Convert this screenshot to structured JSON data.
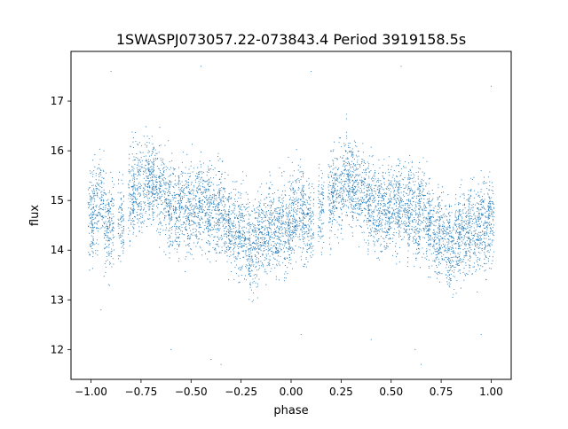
{
  "chart_data": {
    "type": "scatter",
    "title": "1SWASPJ073057.22-073843.4 Period 3919158.5s",
    "xlabel": "phase",
    "ylabel": "flux",
    "xlim": [
      -1.1,
      1.1
    ],
    "ylim": [
      11.4,
      18.0
    ],
    "xticks": [
      -1.0,
      -0.75,
      -0.5,
      -0.25,
      0.0,
      0.25,
      0.5,
      0.75,
      1.0
    ],
    "xtick_labels": [
      "−1.00",
      "−0.75",
      "−0.50",
      "−0.25",
      "0.00",
      "0.25",
      "0.50",
      "0.75",
      "1.00"
    ],
    "yticks": [
      12,
      13,
      14,
      15,
      16,
      17
    ],
    "ytick_labels": [
      "12",
      "13",
      "14",
      "15",
      "16",
      "17"
    ],
    "grid": false,
    "legend": "none",
    "marker_color": "#1f77b4",
    "series": [
      {
        "values_description_free": true,
        "points": [
          [
            -1.0,
            14.6
          ],
          [
            -0.98,
            14.9
          ],
          [
            -0.95,
            15.1
          ],
          [
            -0.92,
            14.4
          ],
          [
            -0.9,
            14.6
          ],
          [
            -0.85,
            14.5
          ],
          [
            -0.8,
            15.0
          ],
          [
            -0.78,
            15.3
          ],
          [
            -0.75,
            15.2
          ],
          [
            -0.72,
            15.5
          ],
          [
            -0.7,
            15.4
          ],
          [
            -0.68,
            15.3
          ],
          [
            -0.65,
            15.2
          ],
          [
            -0.62,
            15.0
          ],
          [
            -0.6,
            14.9
          ],
          [
            -0.57,
            14.8
          ],
          [
            -0.55,
            14.9
          ],
          [
            -0.52,
            14.7
          ],
          [
            -0.5,
            14.9
          ],
          [
            -0.47,
            14.8
          ],
          [
            -0.45,
            15.0
          ],
          [
            -0.42,
            14.8
          ],
          [
            -0.4,
            14.9
          ],
          [
            -0.37,
            14.7
          ],
          [
            -0.35,
            14.9
          ],
          [
            -0.32,
            14.6
          ],
          [
            -0.3,
            14.4
          ],
          [
            -0.27,
            14.3
          ],
          [
            -0.25,
            14.4
          ],
          [
            -0.22,
            14.2
          ],
          [
            -0.2,
            14.0
          ],
          [
            -0.17,
            14.2
          ],
          [
            -0.15,
            14.4
          ],
          [
            -0.12,
            14.3
          ],
          [
            -0.1,
            14.5
          ],
          [
            -0.07,
            14.3
          ],
          [
            -0.05,
            14.6
          ],
          [
            -0.02,
            14.4
          ],
          [
            0.0,
            14.6
          ],
          [
            0.02,
            14.7
          ],
          [
            0.05,
            14.9
          ],
          [
            0.07,
            14.5
          ],
          [
            0.1,
            14.6
          ],
          [
            0.15,
            14.8
          ],
          [
            0.2,
            15.0
          ],
          [
            0.22,
            15.3
          ],
          [
            0.25,
            15.2
          ],
          [
            0.28,
            15.5
          ],
          [
            0.3,
            15.4
          ],
          [
            0.32,
            15.3
          ],
          [
            0.35,
            15.2
          ],
          [
            0.38,
            15.0
          ],
          [
            0.4,
            14.9
          ],
          [
            0.43,
            14.8
          ],
          [
            0.45,
            14.9
          ],
          [
            0.48,
            14.7
          ],
          [
            0.5,
            14.9
          ],
          [
            0.53,
            14.8
          ],
          [
            0.55,
            15.0
          ],
          [
            0.58,
            14.8
          ],
          [
            0.6,
            14.9
          ],
          [
            0.63,
            14.7
          ],
          [
            0.65,
            14.9
          ],
          [
            0.68,
            14.6
          ],
          [
            0.7,
            14.4
          ],
          [
            0.73,
            14.3
          ],
          [
            0.75,
            14.4
          ],
          [
            0.78,
            14.2
          ],
          [
            0.8,
            14.0
          ],
          [
            0.83,
            14.2
          ],
          [
            0.85,
            14.4
          ],
          [
            0.88,
            14.3
          ],
          [
            0.9,
            14.5
          ],
          [
            0.93,
            14.3
          ],
          [
            0.95,
            14.6
          ],
          [
            0.98,
            14.4
          ],
          [
            1.0,
            14.6
          ],
          [
            -0.9,
            17.6
          ],
          [
            -0.45,
            17.7
          ],
          [
            0.1,
            17.6
          ],
          [
            0.55,
            17.7
          ],
          [
            1.0,
            17.3
          ],
          [
            -0.95,
            12.8
          ],
          [
            -0.6,
            12.0
          ],
          [
            -0.4,
            11.8
          ],
          [
            0.05,
            12.3
          ],
          [
            0.4,
            12.2
          ],
          [
            0.62,
            12.0
          ],
          [
            0.65,
            11.7
          ],
          [
            -0.35,
            11.7
          ],
          [
            0.95,
            12.3
          ]
        ]
      }
    ]
  }
}
